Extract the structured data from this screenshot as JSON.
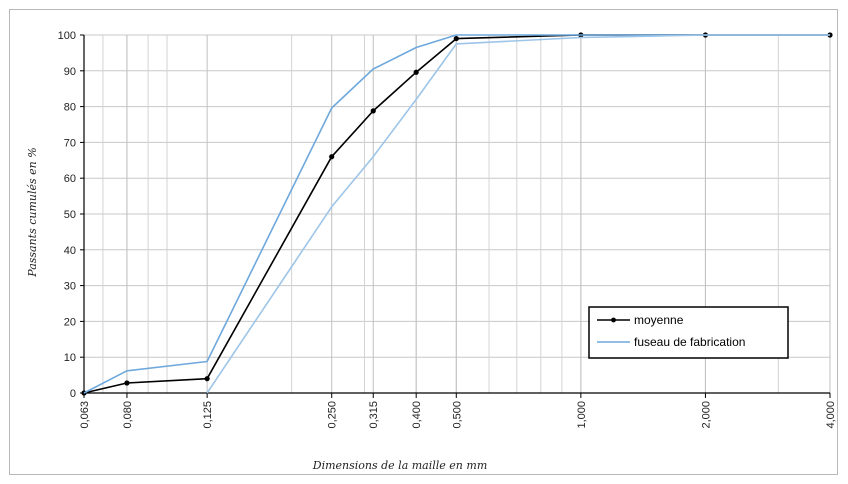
{
  "chart_data": {
    "type": "line",
    "xlabel": "Dimensions de la maille en mm",
    "ylabel": "Passants cumulés en %",
    "x_scale": "log",
    "xlim": [
      0.063,
      4.0
    ],
    "ylim": [
      0,
      100
    ],
    "y_ticks": [
      0,
      10,
      20,
      30,
      40,
      50,
      60,
      70,
      80,
      90,
      100
    ],
    "x_ticks": [
      {
        "value": 0.063,
        "label": "0,063"
      },
      {
        "value": 0.08,
        "label": "0,080"
      },
      {
        "value": 0.125,
        "label": "0,125"
      },
      {
        "value": 0.25,
        "label": "0,250"
      },
      {
        "value": 0.315,
        "label": "0,315"
      },
      {
        "value": 0.4,
        "label": "0,400"
      },
      {
        "value": 0.5,
        "label": "0,500"
      },
      {
        "value": 1.0,
        "label": "1,000"
      },
      {
        "value": 2.0,
        "label": "2,000"
      },
      {
        "value": 4.0,
        "label": "4,000"
      }
    ],
    "grid": true,
    "legend_position": "bottom-right",
    "series": [
      {
        "name": "moyenne",
        "color": "#000000",
        "markers": true,
        "points": [
          {
            "x": 0.063,
            "y": 0
          },
          {
            "x": 0.08,
            "y": 2.8
          },
          {
            "x": 0.125,
            "y": 4.0
          },
          {
            "x": 0.25,
            "y": 66
          },
          {
            "x": 0.315,
            "y": 78.8
          },
          {
            "x": 0.4,
            "y": 89.6
          },
          {
            "x": 0.5,
            "y": 99.0
          },
          {
            "x": 1.0,
            "y": 100
          },
          {
            "x": 2.0,
            "y": 100
          },
          {
            "x": 4.0,
            "y": 100
          }
        ]
      },
      {
        "name": "fuseau de fabrication",
        "color": "#6fa8dc",
        "markers": false,
        "points": [
          {
            "x": 0.063,
            "y": 0
          },
          {
            "x": 0.08,
            "y": 6.2
          },
          {
            "x": 0.125,
            "y": 8.8
          },
          {
            "x": 0.25,
            "y": 79.6
          },
          {
            "x": 0.315,
            "y": 90.5
          },
          {
            "x": 0.4,
            "y": 96.5
          },
          {
            "x": 0.5,
            "y": 100
          },
          {
            "x": 1.0,
            "y": 100
          },
          {
            "x": 2.0,
            "y": 100
          },
          {
            "x": 4.0,
            "y": 100
          }
        ]
      },
      {
        "name": "",
        "color": "#9cc5e8",
        "markers": false,
        "points": [
          {
            "x": 0.125,
            "y": 0
          },
          {
            "x": 0.25,
            "y": 52
          },
          {
            "x": 0.315,
            "y": 66
          },
          {
            "x": 0.4,
            "y": 82
          },
          {
            "x": 0.5,
            "y": 97.5
          },
          {
            "x": 1.0,
            "y": 99.3
          },
          {
            "x": 2.0,
            "y": 100
          },
          {
            "x": 4.0,
            "y": 100
          }
        ]
      }
    ]
  }
}
